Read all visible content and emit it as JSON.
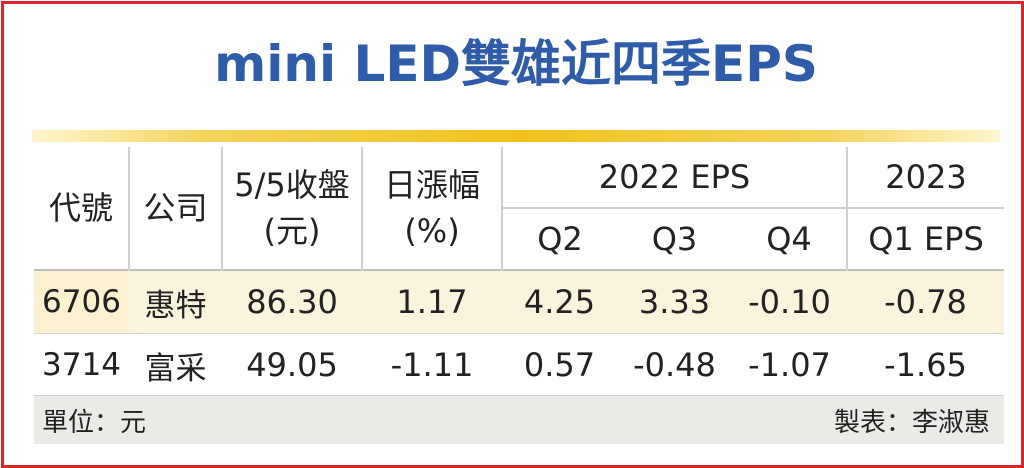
{
  "title": "mini LED雙雄近四季EPS",
  "table": {
    "headers": {
      "code": "代號",
      "company": "公司",
      "close_line1": "5/5收盤",
      "close_line2": "(元)",
      "change_line1": "日漲幅",
      "change_line2": "(%)",
      "eps2022": "2022 EPS",
      "year2023": "2023",
      "q2": "Q2",
      "q3": "Q3",
      "q4": "Q4",
      "q1eps": "Q1 EPS"
    },
    "rows": [
      {
        "code": "6706",
        "company": "惠特",
        "close": "86.30",
        "change": "1.17",
        "q2": "4.25",
        "q3": "3.33",
        "q4": "-0.10",
        "q1_2023": "-0.78"
      },
      {
        "code": "3714",
        "company": "富采",
        "close": "49.05",
        "change": "-1.11",
        "q2": "0.57",
        "q3": "-0.48",
        "q4": "-1.07",
        "q1_2023": "-1.65"
      }
    ]
  },
  "footer": {
    "unit": "單位：元",
    "maker": "製表：李淑惠"
  },
  "colors": {
    "border": "#d9262b",
    "title": "#2f5ca8",
    "gold_line": "#efc21c",
    "highlight_row": "#fbf4dd",
    "footer_bg": "#eceae6"
  }
}
